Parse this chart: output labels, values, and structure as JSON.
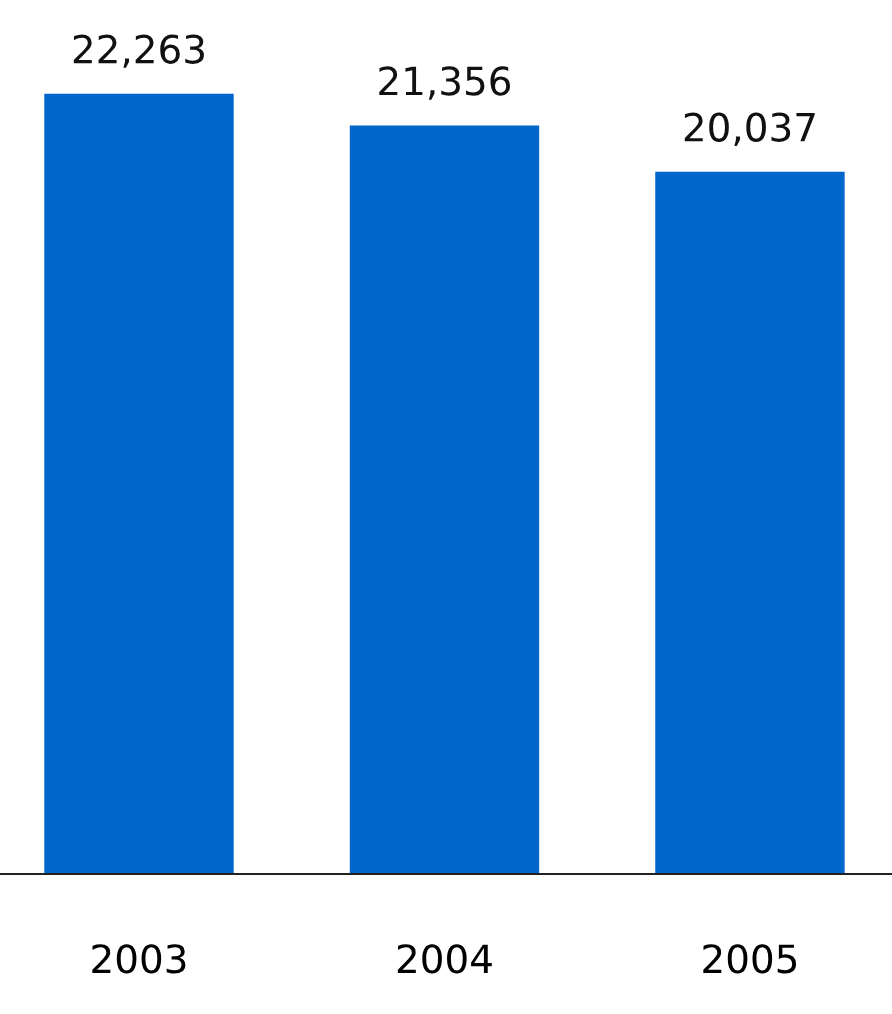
{
  "chart_data": {
    "type": "bar",
    "categories": [
      "2003",
      "2004",
      "2005"
    ],
    "values": [
      22263,
      21356,
      20037
    ],
    "value_labels": [
      "22,263",
      "21,356",
      "20,037"
    ],
    "color": "#0066cc",
    "tick_labels": "x",
    "grid": false,
    "legend": false
  }
}
